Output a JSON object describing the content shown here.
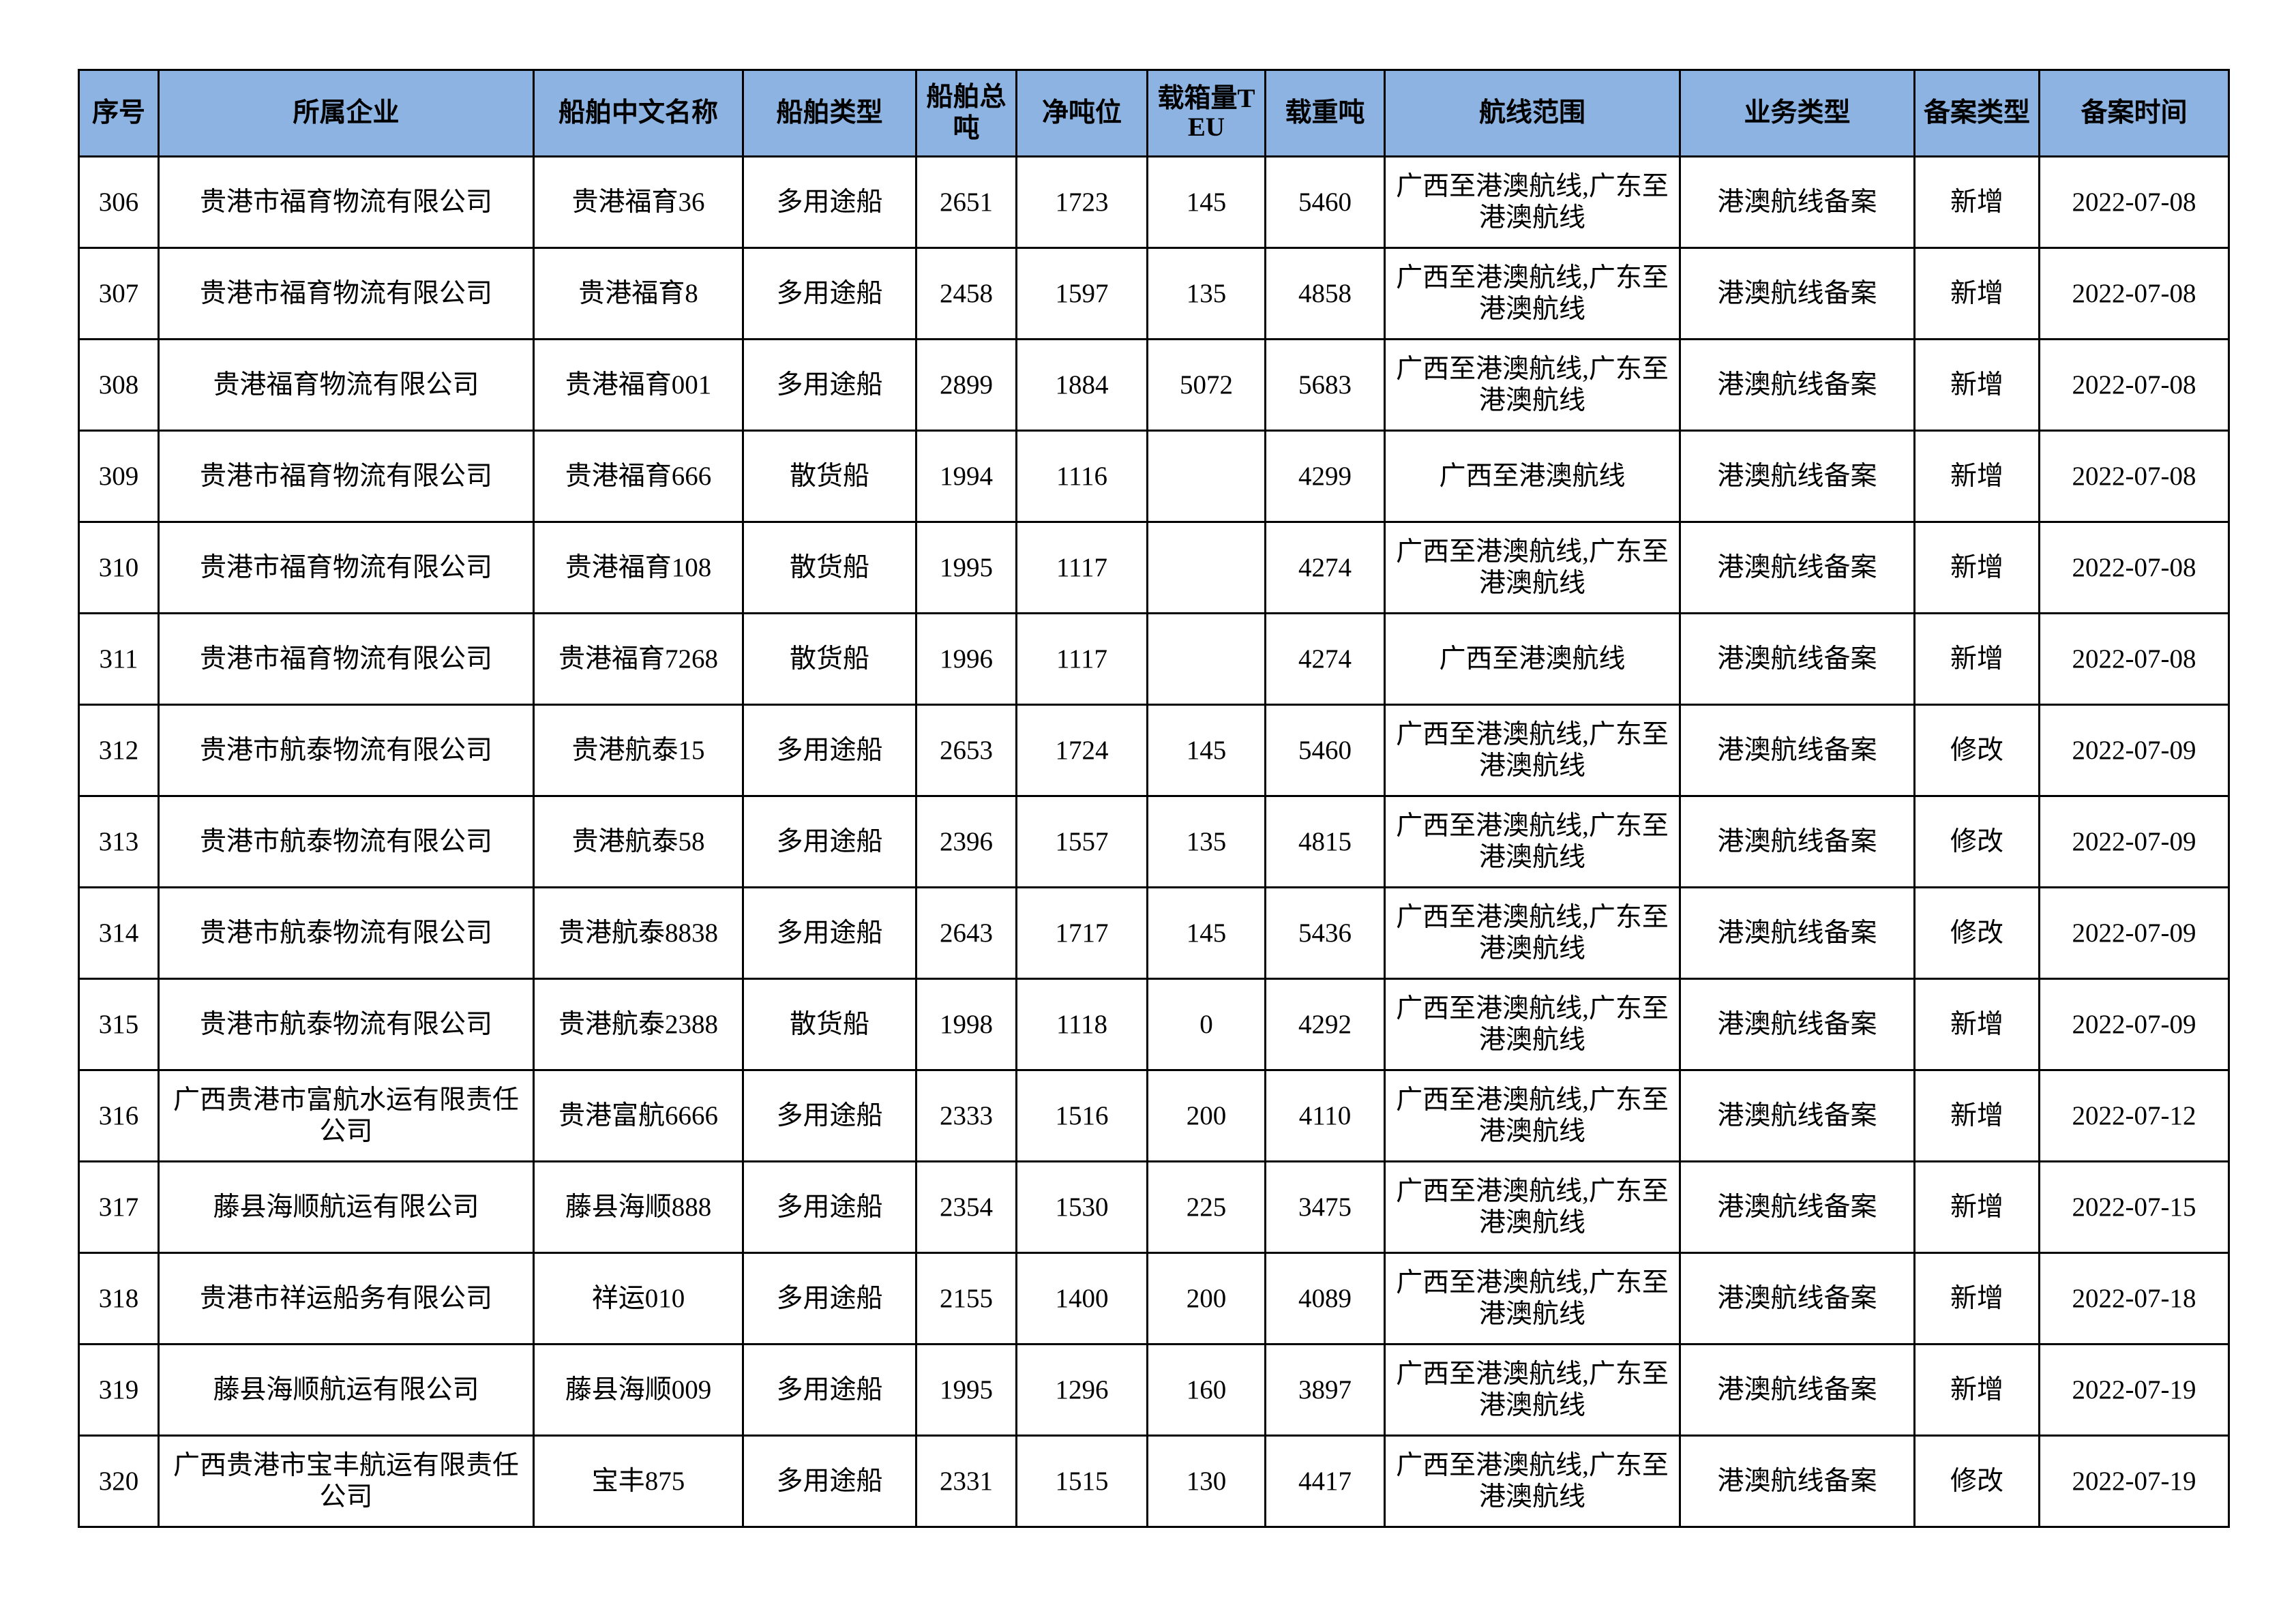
{
  "table": {
    "header_color": "#8DB3E2",
    "columns": [
      "序号",
      "所属企业",
      "船舶中文名称",
      "船舶类型",
      "船舶总吨",
      "净吨位",
      "载箱量TEU",
      "载重吨",
      "航线范围",
      "业务类型",
      "备案类型",
      "备案时间"
    ],
    "rows": [
      [
        "306",
        "贵港市福育物流有限公司",
        "贵港福育36",
        "多用途船",
        "2651",
        "1723",
        "145",
        "5460",
        "广西至港澳航线,广东至港澳航线",
        "港澳航线备案",
        "新增",
        "2022-07-08"
      ],
      [
        "307",
        "贵港市福育物流有限公司",
        "贵港福育8",
        "多用途船",
        "2458",
        "1597",
        "135",
        "4858",
        "广西至港澳航线,广东至港澳航线",
        "港澳航线备案",
        "新增",
        "2022-07-08"
      ],
      [
        "308",
        "贵港福育物流有限公司",
        "贵港福育001",
        "多用途船",
        "2899",
        "1884",
        "5072",
        "5683",
        "广西至港澳航线,广东至港澳航线",
        "港澳航线备案",
        "新增",
        "2022-07-08"
      ],
      [
        "309",
        "贵港市福育物流有限公司",
        "贵港福育666",
        "散货船",
        "1994",
        "1116",
        "",
        "4299",
        "广西至港澳航线",
        "港澳航线备案",
        "新增",
        "2022-07-08"
      ],
      [
        "310",
        "贵港市福育物流有限公司",
        "贵港福育108",
        "散货船",
        "1995",
        "1117",
        "",
        "4274",
        "广西至港澳航线,广东至港澳航线",
        "港澳航线备案",
        "新增",
        "2022-07-08"
      ],
      [
        "311",
        "贵港市福育物流有限公司",
        "贵港福育7268",
        "散货船",
        "1996",
        "1117",
        "",
        "4274",
        "广西至港澳航线",
        "港澳航线备案",
        "新增",
        "2022-07-08"
      ],
      [
        "312",
        "贵港市航泰物流有限公司",
        "贵港航泰15",
        "多用途船",
        "2653",
        "1724",
        "145",
        "5460",
        "广西至港澳航线,广东至港澳航线",
        "港澳航线备案",
        "修改",
        "2022-07-09"
      ],
      [
        "313",
        "贵港市航泰物流有限公司",
        "贵港航泰58",
        "多用途船",
        "2396",
        "1557",
        "135",
        "4815",
        "广西至港澳航线,广东至港澳航线",
        "港澳航线备案",
        "修改",
        "2022-07-09"
      ],
      [
        "314",
        "贵港市航泰物流有限公司",
        "贵港航泰8838",
        "多用途船",
        "2643",
        "1717",
        "145",
        "5436",
        "广西至港澳航线,广东至港澳航线",
        "港澳航线备案",
        "修改",
        "2022-07-09"
      ],
      [
        "315",
        "贵港市航泰物流有限公司",
        "贵港航泰2388",
        "散货船",
        "1998",
        "1118",
        "0",
        "4292",
        "广西至港澳航线,广东至港澳航线",
        "港澳航线备案",
        "新增",
        "2022-07-09"
      ],
      [
        "316",
        "广西贵港市富航水运有限责任公司",
        "贵港富航6666",
        "多用途船",
        "2333",
        "1516",
        "200",
        "4110",
        "广西至港澳航线,广东至港澳航线",
        "港澳航线备案",
        "新增",
        "2022-07-12"
      ],
      [
        "317",
        "藤县海顺航运有限公司",
        "藤县海顺888",
        "多用途船",
        "2354",
        "1530",
        "225",
        "3475",
        "广西至港澳航线,广东至港澳航线",
        "港澳航线备案",
        "新增",
        "2022-07-15"
      ],
      [
        "318",
        "贵港市祥运船务有限公司",
        "祥运010",
        "多用途船",
        "2155",
        "1400",
        "200",
        "4089",
        "广西至港澳航线,广东至港澳航线",
        "港澳航线备案",
        "新增",
        "2022-07-18"
      ],
      [
        "319",
        "藤县海顺航运有限公司",
        "藤县海顺009",
        "多用途船",
        "1995",
        "1296",
        "160",
        "3897",
        "广西至港澳航线,广东至港澳航线",
        "港澳航线备案",
        "新增",
        "2022-07-19"
      ],
      [
        "320",
        "广西贵港市宝丰航运有限责任公司",
        "宝丰875",
        "多用途船",
        "2331",
        "1515",
        "130",
        "4417",
        "广西至港澳航线,广东至港澳航线",
        "港澳航线备案",
        "修改",
        "2022-07-19"
      ]
    ]
  }
}
